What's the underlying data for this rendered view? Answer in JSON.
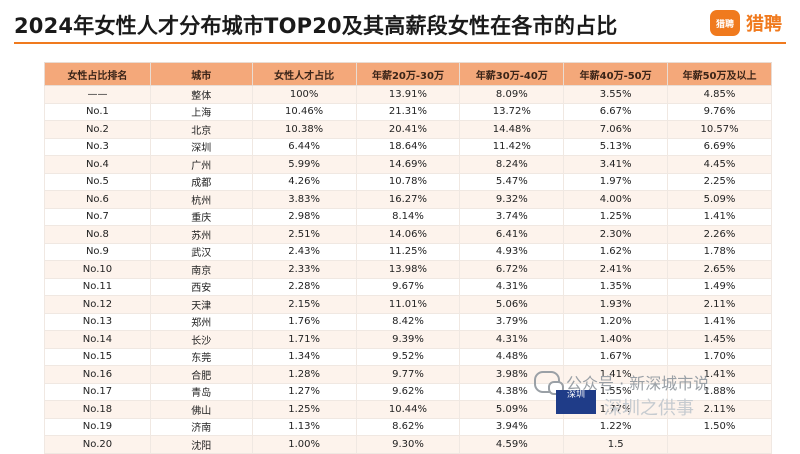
{
  "title": "2024年女性人才分布城市TOP20及其高薪段女性在各市的占比",
  "logo": {
    "badge": "猎聘",
    "text": "猎聘"
  },
  "table": {
    "headers": [
      "女性占比排名",
      "城市",
      "女性人才占比",
      "年薪20万-30万",
      "年薪30万-40万",
      "年薪40万-50万",
      "年薪50万及以上"
    ],
    "rows": [
      [
        "——",
        "整体",
        "100%",
        "13.91%",
        "8.09%",
        "3.55%",
        "4.85%"
      ],
      [
        "No.1",
        "上海",
        "10.46%",
        "21.31%",
        "13.72%",
        "6.67%",
        "9.76%"
      ],
      [
        "No.2",
        "北京",
        "10.38%",
        "20.41%",
        "14.48%",
        "7.06%",
        "10.57%"
      ],
      [
        "No.3",
        "深圳",
        "6.44%",
        "18.64%",
        "11.42%",
        "5.13%",
        "6.69%"
      ],
      [
        "No.4",
        "广州",
        "5.99%",
        "14.69%",
        "8.24%",
        "3.41%",
        "4.45%"
      ],
      [
        "No.5",
        "成都",
        "4.26%",
        "10.78%",
        "5.47%",
        "1.97%",
        "2.25%"
      ],
      [
        "No.6",
        "杭州",
        "3.83%",
        "16.27%",
        "9.32%",
        "4.00%",
        "5.09%"
      ],
      [
        "No.7",
        "重庆",
        "2.98%",
        "8.14%",
        "3.74%",
        "1.25%",
        "1.41%"
      ],
      [
        "No.8",
        "苏州",
        "2.51%",
        "14.06%",
        "6.41%",
        "2.30%",
        "2.26%"
      ],
      [
        "No.9",
        "武汉",
        "2.43%",
        "11.25%",
        "4.93%",
        "1.62%",
        "1.78%"
      ],
      [
        "No.10",
        "南京",
        "2.33%",
        "13.98%",
        "6.72%",
        "2.41%",
        "2.65%"
      ],
      [
        "No.11",
        "西安",
        "2.28%",
        "9.67%",
        "4.31%",
        "1.35%",
        "1.49%"
      ],
      [
        "No.12",
        "天津",
        "2.15%",
        "11.01%",
        "5.06%",
        "1.93%",
        "2.11%"
      ],
      [
        "No.13",
        "郑州",
        "1.76%",
        "8.42%",
        "3.79%",
        "1.20%",
        "1.41%"
      ],
      [
        "No.14",
        "长沙",
        "1.71%",
        "9.39%",
        "4.31%",
        "1.40%",
        "1.45%"
      ],
      [
        "No.15",
        "东莞",
        "1.34%",
        "9.52%",
        "4.48%",
        "1.67%",
        "1.70%"
      ],
      [
        "No.16",
        "合肥",
        "1.28%",
        "9.77%",
        "3.98%",
        "1.41%",
        "1.41%"
      ],
      [
        "No.17",
        "青岛",
        "1.27%",
        "9.62%",
        "4.38%",
        "1.55%",
        "1.88%"
      ],
      [
        "No.18",
        "佛山",
        "1.25%",
        "10.44%",
        "5.09%",
        "1.77%",
        "2.11%"
      ],
      [
        "No.19",
        "济南",
        "1.13%",
        "8.62%",
        "3.94%",
        "1.22%",
        "1.50%"
      ],
      [
        "No.20",
        "沈阳",
        "1.00%",
        "9.30%",
        "4.59%",
        "1.5",
        ""
      ]
    ]
  },
  "watermark": {
    "text": "公众号 · 新深城市说"
  },
  "stamp": {
    "text": "深圳"
  },
  "faded": {
    "text": "深圳之供事"
  }
}
